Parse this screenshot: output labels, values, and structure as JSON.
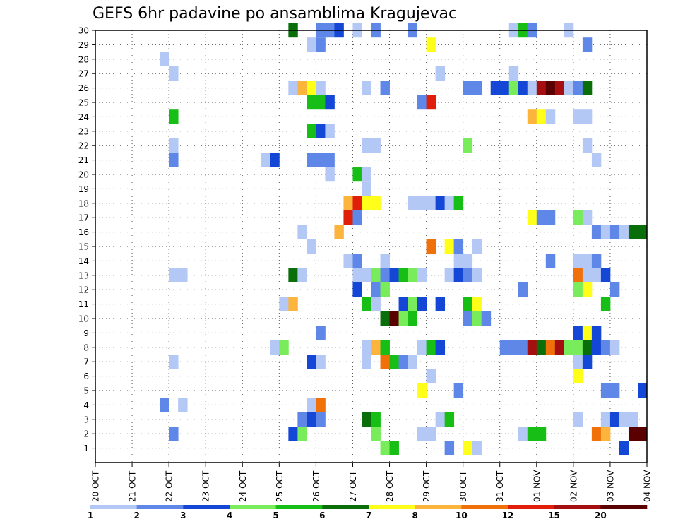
{
  "chart_data": {
    "type": "heatmap",
    "title": "GEFS 6hr padavine po ansamblima Kragujevac",
    "xlabel": "",
    "ylabel": "",
    "x_ticks": [
      "20 OCT",
      "21 OCT",
      "22 OCT",
      "23 OCT",
      "24 OCT",
      "25 OCT",
      "26 OCT",
      "27 OCT",
      "28 OCT",
      "29 OCT",
      "30 OCT",
      "31 OCT",
      "01 NOV",
      "02 NOV",
      "03 NOV",
      "04 NOV"
    ],
    "y_ticks": [
      "1",
      "2",
      "3",
      "4",
      "5",
      "6",
      "7",
      "8",
      "9",
      "10",
      "11",
      "12",
      "13",
      "14",
      "15",
      "16",
      "17",
      "18",
      "19",
      "20",
      "21",
      "22",
      "23",
      "24",
      "25",
      "26",
      "27",
      "28",
      "29",
      "30"
    ],
    "x_range_steps": [
      0,
      60
    ],
    "steps_per_day": 4,
    "y_range": [
      0,
      30
    ],
    "grid": true,
    "colorbar": {
      "labels": [
        "1",
        "2",
        "3",
        "4",
        "5",
        "6",
        "7",
        "8",
        "10",
        "12",
        "15",
        "20"
      ],
      "colors": [
        "#b4c8f5",
        "#5f87e8",
        "#1447d6",
        "#78ec5a",
        "#16be16",
        "#0a6e0a",
        "#ffff1a",
        "#fcb43c",
        "#f0700a",
        "#e01e0a",
        "#a50f0f",
        "#5a0000"
      ]
    },
    "cells": [
      {
        "member": 30,
        "step": 21.5,
        "bin": 6
      },
      {
        "member": 30,
        "step": 24.5,
        "bin": 2
      },
      {
        "member": 30,
        "step": 25.5,
        "bin": 2
      },
      {
        "member": 30,
        "step": 26.5,
        "bin": 3
      },
      {
        "member": 30,
        "step": 28.5,
        "bin": 1
      },
      {
        "member": 30,
        "step": 30.5,
        "bin": 2
      },
      {
        "member": 30,
        "step": 34.5,
        "bin": 2
      },
      {
        "member": 30,
        "step": 45.5,
        "bin": 1
      },
      {
        "member": 30,
        "step": 46.5,
        "bin": 5
      },
      {
        "member": 30,
        "step": 47.5,
        "bin": 2
      },
      {
        "member": 30,
        "step": 51.5,
        "bin": 1
      },
      {
        "member": 29,
        "step": 23.5,
        "bin": 1
      },
      {
        "member": 29,
        "step": 24.5,
        "bin": 2
      },
      {
        "member": 29,
        "step": 36.5,
        "bin": 7
      },
      {
        "member": 29,
        "step": 53.5,
        "bin": 2
      },
      {
        "member": 28,
        "step": 7.5,
        "bin": 1
      },
      {
        "member": 27,
        "step": 8.5,
        "bin": 1
      },
      {
        "member": 27,
        "step": 37.5,
        "bin": 1
      },
      {
        "member": 27,
        "step": 45.5,
        "bin": 1
      },
      {
        "member": 26,
        "step": 21.5,
        "bin": 1
      },
      {
        "member": 26,
        "step": 22.5,
        "bin": 8
      },
      {
        "member": 26,
        "step": 23.5,
        "bin": 7
      },
      {
        "member": 26,
        "step": 24.5,
        "bin": 1
      },
      {
        "member": 26,
        "step": 29.5,
        "bin": 1
      },
      {
        "member": 26,
        "step": 31.5,
        "bin": 2
      },
      {
        "member": 26,
        "step": 40.5,
        "bin": 2
      },
      {
        "member": 26,
        "step": 41.5,
        "bin": 2
      },
      {
        "member": 26,
        "step": 43.5,
        "bin": 3
      },
      {
        "member": 26,
        "step": 44.5,
        "bin": 3
      },
      {
        "member": 26,
        "step": 45.5,
        "bin": 4
      },
      {
        "member": 26,
        "step": 46.5,
        "bin": 3
      },
      {
        "member": 26,
        "step": 47.5,
        "bin": 1
      },
      {
        "member": 26,
        "step": 48.5,
        "bin": 11
      },
      {
        "member": 26,
        "step": 49.5,
        "bin": 12
      },
      {
        "member": 26,
        "step": 50.5,
        "bin": 11
      },
      {
        "member": 26,
        "step": 51.5,
        "bin": 1
      },
      {
        "member": 26,
        "step": 52.5,
        "bin": 2
      },
      {
        "member": 26,
        "step": 53.5,
        "bin": 6
      },
      {
        "member": 25,
        "step": 23.5,
        "bin": 5
      },
      {
        "member": 25,
        "step": 24.5,
        "bin": 5
      },
      {
        "member": 25,
        "step": 25.5,
        "bin": 3
      },
      {
        "member": 25,
        "step": 35.5,
        "bin": 2
      },
      {
        "member": 25,
        "step": 36.5,
        "bin": 10
      },
      {
        "member": 24,
        "step": 8.5,
        "bin": 5
      },
      {
        "member": 24,
        "step": 47.5,
        "bin": 8
      },
      {
        "member": 24,
        "step": 48.5,
        "bin": 7
      },
      {
        "member": 24,
        "step": 49.5,
        "bin": 1
      },
      {
        "member": 24,
        "step": 52.5,
        "bin": 1
      },
      {
        "member": 24,
        "step": 53.5,
        "bin": 1
      },
      {
        "member": 23,
        "step": 23.5,
        "bin": 5
      },
      {
        "member": 23,
        "step": 24.5,
        "bin": 3
      },
      {
        "member": 23,
        "step": 25.5,
        "bin": 1
      },
      {
        "member": 22,
        "step": 8.5,
        "bin": 1
      },
      {
        "member": 22,
        "step": 29.5,
        "bin": 1
      },
      {
        "member": 22,
        "step": 30.5,
        "bin": 1
      },
      {
        "member": 22,
        "step": 40.5,
        "bin": 4
      },
      {
        "member": 22,
        "step": 53.5,
        "bin": 1
      },
      {
        "member": 21,
        "step": 8.5,
        "bin": 2
      },
      {
        "member": 21,
        "step": 18.5,
        "bin": 1
      },
      {
        "member": 21,
        "step": 19.5,
        "bin": 3
      },
      {
        "member": 21,
        "step": 23.5,
        "bin": 2
      },
      {
        "member": 21,
        "step": 24.5,
        "bin": 2
      },
      {
        "member": 21,
        "step": 25.5,
        "bin": 2
      },
      {
        "member": 21,
        "step": 54.5,
        "bin": 1
      },
      {
        "member": 20,
        "step": 25.5,
        "bin": 1
      },
      {
        "member": 20,
        "step": 28.5,
        "bin": 5
      },
      {
        "member": 20,
        "step": 29.5,
        "bin": 1
      },
      {
        "member": 19,
        "step": 29.5,
        "bin": 1
      },
      {
        "member": 18,
        "step": 27.5,
        "bin": 8
      },
      {
        "member": 18,
        "step": 28.5,
        "bin": 10
      },
      {
        "member": 18,
        "step": 29.5,
        "bin": 7
      },
      {
        "member": 18,
        "step": 30.5,
        "bin": 7
      },
      {
        "member": 18,
        "step": 34.5,
        "bin": 1
      },
      {
        "member": 18,
        "step": 35.5,
        "bin": 1
      },
      {
        "member": 18,
        "step": 36.5,
        "bin": 1
      },
      {
        "member": 18,
        "step": 37.5,
        "bin": 3
      },
      {
        "member": 18,
        "step": 38.5,
        "bin": 1
      },
      {
        "member": 18,
        "step": 39.5,
        "bin": 5
      },
      {
        "member": 17,
        "step": 27.5,
        "bin": 10
      },
      {
        "member": 17,
        "step": 28.5,
        "bin": 2
      },
      {
        "member": 17,
        "step": 47.5,
        "bin": 7
      },
      {
        "member": 17,
        "step": 48.5,
        "bin": 2
      },
      {
        "member": 17,
        "step": 49.5,
        "bin": 2
      },
      {
        "member": 17,
        "step": 52.5,
        "bin": 4
      },
      {
        "member": 17,
        "step": 53.5,
        "bin": 1
      },
      {
        "member": 16,
        "step": 26.5,
        "bin": 8
      },
      {
        "member": 16,
        "step": 22.5,
        "bin": 1
      },
      {
        "member": 16,
        "step": 54.5,
        "bin": 2
      },
      {
        "member": 16,
        "step": 55.5,
        "bin": 1
      },
      {
        "member": 16,
        "step": 56.5,
        "bin": 2
      },
      {
        "member": 16,
        "step": 57.5,
        "bin": 1
      },
      {
        "member": 16,
        "step": 58.5,
        "bin": 6
      },
      {
        "member": 16,
        "step": 59.5,
        "bin": 6
      },
      {
        "member": 15,
        "step": 23.5,
        "bin": 1
      },
      {
        "member": 15,
        "step": 36.5,
        "bin": 9
      },
      {
        "member": 15,
        "step": 38.5,
        "bin": 7
      },
      {
        "member": 15,
        "step": 39.5,
        "bin": 2
      },
      {
        "member": 15,
        "step": 41.5,
        "bin": 1
      },
      {
        "member": 14,
        "step": 27.5,
        "bin": 1
      },
      {
        "member": 14,
        "step": 28.5,
        "bin": 2
      },
      {
        "member": 14,
        "step": 31.5,
        "bin": 1
      },
      {
        "member": 14,
        "step": 39.5,
        "bin": 1
      },
      {
        "member": 14,
        "step": 40.5,
        "bin": 1
      },
      {
        "member": 14,
        "step": 49.5,
        "bin": 2
      },
      {
        "member": 14,
        "step": 52.5,
        "bin": 1
      },
      {
        "member": 14,
        "step": 53.5,
        "bin": 1
      },
      {
        "member": 14,
        "step": 54.5,
        "bin": 2
      },
      {
        "member": 13,
        "step": 8.5,
        "bin": 1
      },
      {
        "member": 13,
        "step": 9.5,
        "bin": 1
      },
      {
        "member": 13,
        "step": 21.5,
        "bin": 6
      },
      {
        "member": 13,
        "step": 22.5,
        "bin": 1
      },
      {
        "member": 13,
        "step": 28.5,
        "bin": 1
      },
      {
        "member": 13,
        "step": 29.5,
        "bin": 1
      },
      {
        "member": 13,
        "step": 30.5,
        "bin": 4
      },
      {
        "member": 13,
        "step": 31.5,
        "bin": 2
      },
      {
        "member": 13,
        "step": 32.5,
        "bin": 3
      },
      {
        "member": 13,
        "step": 33.5,
        "bin": 5
      },
      {
        "member": 13,
        "step": 34.5,
        "bin": 4
      },
      {
        "member": 13,
        "step": 35.5,
        "bin": 1
      },
      {
        "member": 13,
        "step": 38.5,
        "bin": 1
      },
      {
        "member": 13,
        "step": 39.5,
        "bin": 3
      },
      {
        "member": 13,
        "step": 40.5,
        "bin": 2
      },
      {
        "member": 13,
        "step": 41.5,
        "bin": 1
      },
      {
        "member": 13,
        "step": 52.5,
        "bin": 9
      },
      {
        "member": 13,
        "step": 53.5,
        "bin": 1
      },
      {
        "member": 13,
        "step": 54.5,
        "bin": 1
      },
      {
        "member": 13,
        "step": 55.5,
        "bin": 3
      },
      {
        "member": 12,
        "step": 28.5,
        "bin": 3
      },
      {
        "member": 12,
        "step": 30.5,
        "bin": 2
      },
      {
        "member": 12,
        "step": 31.5,
        "bin": 4
      },
      {
        "member": 12,
        "step": 46.5,
        "bin": 2
      },
      {
        "member": 12,
        "step": 52.5,
        "bin": 4
      },
      {
        "member": 12,
        "step": 53.5,
        "bin": 7
      },
      {
        "member": 12,
        "step": 56.5,
        "bin": 2
      },
      {
        "member": 11,
        "step": 20.5,
        "bin": 1
      },
      {
        "member": 11,
        "step": 21.5,
        "bin": 8
      },
      {
        "member": 11,
        "step": 29.5,
        "bin": 5
      },
      {
        "member": 11,
        "step": 30.5,
        "bin": 1
      },
      {
        "member": 11,
        "step": 33.5,
        "bin": 3
      },
      {
        "member": 11,
        "step": 34.5,
        "bin": 4
      },
      {
        "member": 11,
        "step": 35.5,
        "bin": 3
      },
      {
        "member": 11,
        "step": 37.5,
        "bin": 3
      },
      {
        "member": 11,
        "step": 40.5,
        "bin": 5
      },
      {
        "member": 11,
        "step": 41.5,
        "bin": 7
      },
      {
        "member": 11,
        "step": 55.5,
        "bin": 5
      },
      {
        "member": 10,
        "step": 31.5,
        "bin": 6
      },
      {
        "member": 10,
        "step": 32.5,
        "bin": 12
      },
      {
        "member": 10,
        "step": 33.5,
        "bin": 4
      },
      {
        "member": 10,
        "step": 34.5,
        "bin": 5
      },
      {
        "member": 10,
        "step": 40.5,
        "bin": 2
      },
      {
        "member": 10,
        "step": 41.5,
        "bin": 4
      },
      {
        "member": 10,
        "step": 42.5,
        "bin": 2
      },
      {
        "member": 9,
        "step": 24.5,
        "bin": 2
      },
      {
        "member": 9,
        "step": 52.5,
        "bin": 3
      },
      {
        "member": 9,
        "step": 53.5,
        "bin": 7
      },
      {
        "member": 9,
        "step": 54.5,
        "bin": 3
      },
      {
        "member": 8,
        "step": 19.5,
        "bin": 1
      },
      {
        "member": 8,
        "step": 20.5,
        "bin": 4
      },
      {
        "member": 8,
        "step": 29.5,
        "bin": 1
      },
      {
        "member": 8,
        "step": 30.5,
        "bin": 8
      },
      {
        "member": 8,
        "step": 31.5,
        "bin": 5
      },
      {
        "member": 8,
        "step": 35.5,
        "bin": 1
      },
      {
        "member": 8,
        "step": 36.5,
        "bin": 5
      },
      {
        "member": 8,
        "step": 37.5,
        "bin": 3
      },
      {
        "member": 8,
        "step": 44.5,
        "bin": 2
      },
      {
        "member": 8,
        "step": 45.5,
        "bin": 2
      },
      {
        "member": 8,
        "step": 46.5,
        "bin": 2
      },
      {
        "member": 8,
        "step": 47.5,
        "bin": 11
      },
      {
        "member": 8,
        "step": 48.5,
        "bin": 6
      },
      {
        "member": 8,
        "step": 49.5,
        "bin": 9
      },
      {
        "member": 8,
        "step": 50.5,
        "bin": 11
      },
      {
        "member": 8,
        "step": 51.5,
        "bin": 4
      },
      {
        "member": 8,
        "step": 52.5,
        "bin": 4
      },
      {
        "member": 8,
        "step": 53.5,
        "bin": 6
      },
      {
        "member": 8,
        "step": 54.5,
        "bin": 3
      },
      {
        "member": 8,
        "step": 55.5,
        "bin": 2
      },
      {
        "member": 8,
        "step": 56.5,
        "bin": 1
      },
      {
        "member": 7,
        "step": 8.5,
        "bin": 1
      },
      {
        "member": 7,
        "step": 23.5,
        "bin": 3
      },
      {
        "member": 7,
        "step": 24.5,
        "bin": 1
      },
      {
        "member": 7,
        "step": 29.5,
        "bin": 1
      },
      {
        "member": 7,
        "step": 31.5,
        "bin": 9
      },
      {
        "member": 7,
        "step": 32.5,
        "bin": 5
      },
      {
        "member": 7,
        "step": 33.5,
        "bin": 2
      },
      {
        "member": 7,
        "step": 34.5,
        "bin": 1
      },
      {
        "member": 7,
        "step": 52.5,
        "bin": 1
      },
      {
        "member": 7,
        "step": 53.5,
        "bin": 3
      },
      {
        "member": 6,
        "step": 36.5,
        "bin": 1
      },
      {
        "member": 6,
        "step": 52.5,
        "bin": 7
      },
      {
        "member": 5,
        "step": 35.5,
        "bin": 7
      },
      {
        "member": 5,
        "step": 39.5,
        "bin": 2
      },
      {
        "member": 5,
        "step": 55.5,
        "bin": 2
      },
      {
        "member": 5,
        "step": 56.5,
        "bin": 2
      },
      {
        "member": 5,
        "step": 59.5,
        "bin": 3
      },
      {
        "member": 4,
        "step": 7.5,
        "bin": 2
      },
      {
        "member": 4,
        "step": 9.5,
        "bin": 1
      },
      {
        "member": 4,
        "step": 23.5,
        "bin": 1
      },
      {
        "member": 4,
        "step": 24.5,
        "bin": 9
      },
      {
        "member": 3,
        "step": 22.5,
        "bin": 2
      },
      {
        "member": 3,
        "step": 23.5,
        "bin": 3
      },
      {
        "member": 3,
        "step": 24.5,
        "bin": 2
      },
      {
        "member": 3,
        "step": 29.5,
        "bin": 6
      },
      {
        "member": 3,
        "step": 30.5,
        "bin": 5
      },
      {
        "member": 3,
        "step": 37.5,
        "bin": 1
      },
      {
        "member": 3,
        "step": 38.5,
        "bin": 5
      },
      {
        "member": 3,
        "step": 52.5,
        "bin": 1
      },
      {
        "member": 3,
        "step": 55.5,
        "bin": 1
      },
      {
        "member": 3,
        "step": 56.5,
        "bin": 3
      },
      {
        "member": 3,
        "step": 57.5,
        "bin": 1
      },
      {
        "member": 3,
        "step": 58.5,
        "bin": 1
      },
      {
        "member": 2,
        "step": 8.5,
        "bin": 2
      },
      {
        "member": 2,
        "step": 21.5,
        "bin": 3
      },
      {
        "member": 2,
        "step": 22.5,
        "bin": 4
      },
      {
        "member": 2,
        "step": 30.5,
        "bin": 4
      },
      {
        "member": 2,
        "step": 35.5,
        "bin": 1
      },
      {
        "member": 2,
        "step": 36.5,
        "bin": 1
      },
      {
        "member": 2,
        "step": 46.5,
        "bin": 1
      },
      {
        "member": 2,
        "step": 47.5,
        "bin": 5
      },
      {
        "member": 2,
        "step": 48.5,
        "bin": 5
      },
      {
        "member": 2,
        "step": 54.5,
        "bin": 9
      },
      {
        "member": 2,
        "step": 55.5,
        "bin": 8
      },
      {
        "member": 2,
        "step": 58.5,
        "bin": 12
      },
      {
        "member": 2,
        "step": 59.5,
        "bin": 12
      },
      {
        "member": 1,
        "step": 31.5,
        "bin": 4
      },
      {
        "member": 1,
        "step": 32.5,
        "bin": 5
      },
      {
        "member": 1,
        "step": 38.5,
        "bin": 2
      },
      {
        "member": 1,
        "step": 40.5,
        "bin": 7
      },
      {
        "member": 1,
        "step": 41.5,
        "bin": 1
      },
      {
        "member": 1,
        "step": 57.5,
        "bin": 3
      }
    ]
  }
}
